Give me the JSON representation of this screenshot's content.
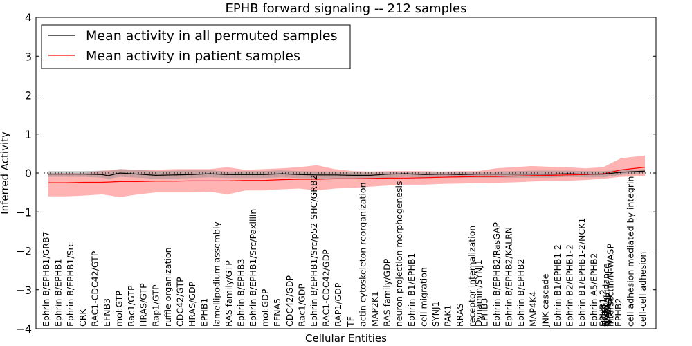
{
  "chart_data": {
    "type": "line",
    "title": "EPHB forward signaling -- 212 samples",
    "xlabel": "Cellular Entities",
    "ylabel": "Inferred Activity",
    "ylim": [
      -4,
      4
    ],
    "yticks": [
      "4",
      "3",
      "2",
      "1",
      "0",
      "−1",
      "−2",
      "−3",
      "−4"
    ],
    "grid": false,
    "legend_position": "top-left",
    "reference_line_y": 0,
    "categories": [
      "Ephrin B/EPHB1/GRB7",
      "Ephrin B/EPHB1",
      "Ephrin B/EPHB1/Src",
      "CRK",
      "RAC1-CDC42/GTP",
      "EFNB3",
      "mol:GTP",
      "Rac1/GTP",
      "HRAS/GTP",
      "Rap1/GTP",
      "ruffle organization",
      "CDC42/GTP",
      "HRAS/GDP",
      "EPHB1",
      "lamellipodium assembly",
      "RAS family/GTP",
      "Ephrin B/EPHB3",
      "Ephrin B/EPHB1/Src/Paxillin",
      "mol:GDP",
      "EFNA5",
      "CDC42/GDP",
      "Rac1/GDP",
      "Ephrin B/EPHB1/Src/p52 SHC/GRB2",
      "RAC1-CDC42/GDP",
      "RAP1/GDP",
      "TF",
      "actin cytoskeleton reorganization",
      "MAP2K1",
      "RAS family/GDP",
      "neuron projection morphogenesis",
      "Ephrin B1/EPHB1",
      "cell migration",
      "SYNJ1",
      "PAK1",
      "RRAS",
      "receptor internalization",
      "EPHB3",
      "Ephrin B/EPHB2/RasGAP",
      "Ephrin B/EPHB2/KALRN",
      "Ephrin B/EPHB2",
      "MAP4K4",
      "JNK cascade",
      "Ephrin B1/EPHB1-2",
      "Ephrin B2/EPHB1-2",
      "Ephrin B1/EPHB1-2/NCK1",
      "Ephrin A5/EPHB2",
      "axon guidance",
      "EPHB2",
      "cell adhesion mediated by integrin",
      "cell-cell adhesion"
    ],
    "overlap_labels": [
      "Dynamin/SYNJ1",
      "EPHB1-2",
      "NCK1",
      "ITSN1",
      "WASL",
      "N-WASP",
      "Intersectin/N-WASP"
    ],
    "series": [
      {
        "name": "Mean activity in all permuted samples",
        "color": "#000000",
        "x": [
          0.0,
          0.03,
          0.06,
          0.09,
          0.1,
          0.12,
          0.15,
          0.18,
          0.21,
          0.24,
          0.27,
          0.3,
          0.33,
          0.36,
          0.39,
          0.42,
          0.45,
          0.48,
          0.51,
          0.54,
          0.57,
          0.6,
          0.63,
          0.66,
          0.69,
          0.72,
          0.75,
          0.78,
          0.81,
          0.84,
          0.87,
          0.9,
          0.93,
          0.96,
          1.0
        ],
        "values": [
          -0.03,
          -0.03,
          -0.03,
          -0.04,
          -0.07,
          0.0,
          -0.03,
          -0.06,
          -0.05,
          -0.04,
          -0.02,
          -0.04,
          -0.04,
          -0.04,
          -0.02,
          -0.04,
          -0.05,
          -0.05,
          -0.06,
          -0.06,
          -0.03,
          -0.02,
          -0.04,
          -0.03,
          -0.04,
          -0.03,
          -0.03,
          -0.03,
          -0.03,
          -0.03,
          -0.02,
          -0.03,
          -0.03,
          0.02,
          0.05
        ],
        "band_upper": [
          0.05,
          0.05,
          0.05,
          0.06,
          0.05,
          0.1,
          0.08,
          0.05,
          0.06,
          0.07,
          0.07,
          0.04,
          0.05,
          0.05,
          0.07,
          0.05,
          0.04,
          0.04,
          0.03,
          0.02,
          0.03,
          0.04,
          0.02,
          0.02,
          0.02,
          0.03,
          0.04,
          0.05,
          0.06,
          0.06,
          0.06,
          0.05,
          0.05,
          0.08,
          0.1
        ],
        "band_lower": [
          -0.1,
          -0.1,
          -0.1,
          -0.12,
          -0.15,
          -0.1,
          -0.12,
          -0.15,
          -0.14,
          -0.13,
          -0.11,
          -0.13,
          -0.13,
          -0.13,
          -0.11,
          -0.13,
          -0.14,
          -0.14,
          -0.15,
          -0.15,
          -0.12,
          -0.1,
          -0.12,
          -0.11,
          -0.12,
          -0.12,
          -0.12,
          -0.12,
          -0.12,
          -0.12,
          -0.1,
          -0.11,
          -0.11,
          -0.05,
          0.0
        ]
      },
      {
        "name": "Mean activity in patient samples",
        "color": "#ff0000",
        "band_color": "#ff9999",
        "x": [
          0.0,
          0.03,
          0.06,
          0.09,
          0.12,
          0.15,
          0.18,
          0.21,
          0.24,
          0.27,
          0.3,
          0.33,
          0.36,
          0.39,
          0.42,
          0.45,
          0.48,
          0.51,
          0.54,
          0.57,
          0.6,
          0.63,
          0.66,
          0.69,
          0.72,
          0.75,
          0.78,
          0.81,
          0.84,
          0.87,
          0.9,
          0.93,
          0.96,
          1.0
        ],
        "values": [
          -0.25,
          -0.25,
          -0.24,
          -0.24,
          -0.22,
          -0.22,
          -0.21,
          -0.21,
          -0.2,
          -0.2,
          -0.2,
          -0.19,
          -0.19,
          -0.17,
          -0.16,
          -0.16,
          -0.15,
          -0.15,
          -0.14,
          -0.13,
          -0.13,
          -0.12,
          -0.11,
          -0.1,
          -0.09,
          -0.09,
          -0.08,
          -0.07,
          -0.06,
          -0.05,
          -0.04,
          -0.02,
          0.08,
          0.15
        ],
        "band_upper": [
          0.0,
          0.0,
          0.0,
          0.06,
          0.1,
          0.08,
          0.08,
          0.1,
          0.1,
          0.1,
          0.15,
          0.08,
          0.1,
          0.12,
          0.15,
          0.2,
          0.1,
          0.05,
          0.04,
          0.05,
          0.05,
          0.05,
          0.04,
          0.05,
          0.05,
          0.12,
          0.15,
          0.18,
          0.16,
          0.15,
          0.12,
          0.15,
          0.38,
          0.45
        ],
        "band_lower": [
          -0.6,
          -0.6,
          -0.58,
          -0.55,
          -0.62,
          -0.55,
          -0.5,
          -0.5,
          -0.5,
          -0.48,
          -0.55,
          -0.45,
          -0.45,
          -0.42,
          -0.4,
          -0.45,
          -0.4,
          -0.38,
          -0.35,
          -0.32,
          -0.3,
          -0.3,
          -0.28,
          -0.27,
          -0.26,
          -0.25,
          -0.24,
          -0.22,
          -0.2,
          -0.2,
          -0.18,
          -0.15,
          -0.1,
          -0.08
        ]
      }
    ]
  }
}
